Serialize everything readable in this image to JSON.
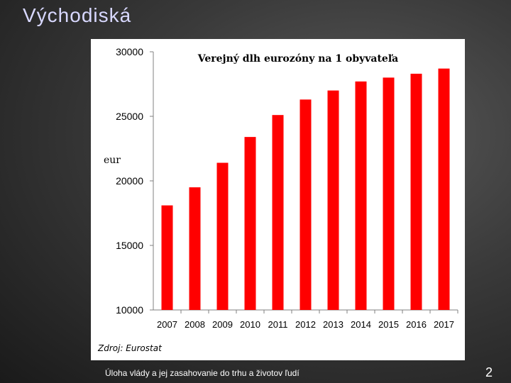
{
  "slide": {
    "title": "Východiská",
    "footer": "Úloha vlády a jej zasahovanie do trhu a životov ľudí",
    "page_number": "2"
  },
  "chart_data": {
    "type": "bar",
    "title": "Verejný dlh eurozóny na 1 obyvateľa",
    "ylabel": "eur",
    "xlabel": "",
    "source": "Zdroj: Eurostat",
    "categories": [
      "2007",
      "2008",
      "2009",
      "2010",
      "2011",
      "2012",
      "2013",
      "2014",
      "2015",
      "2016",
      "2017"
    ],
    "values": [
      18100,
      19500,
      21400,
      23400,
      25100,
      26300,
      27000,
      27700,
      28000,
      28300,
      28700
    ],
    "ylim": [
      10000,
      30000
    ],
    "yticks": [
      "10000",
      "15000",
      "20000",
      "25000",
      "30000"
    ],
    "bar_color": "#ff0000",
    "grid": false
  }
}
